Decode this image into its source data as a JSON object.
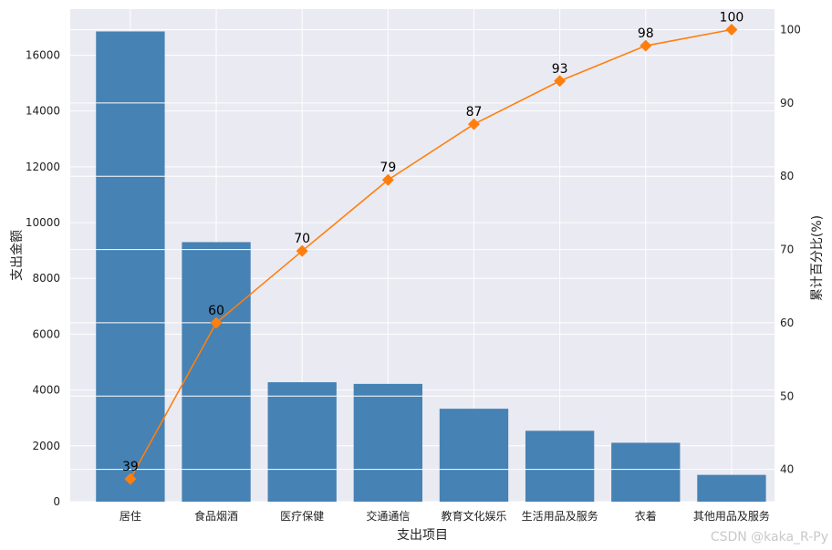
{
  "chart_data": {
    "type": "bar",
    "categories": [
      "居住",
      "食品烟酒",
      "医疗保健",
      "交通通信",
      "教育文化娱乐",
      "生活用品及服务",
      "衣着",
      "其他用品及服务"
    ],
    "series": [
      {
        "type": "bar",
        "axis": "left",
        "color": "#4682b4",
        "values": [
          16850,
          9300,
          4280,
          4220,
          3330,
          2540,
          2110,
          960
        ]
      },
      {
        "type": "line",
        "axis": "right",
        "color": "#ff7f0e",
        "marker": "diamond",
        "values": [
          38.7,
          60.0,
          69.8,
          79.5,
          87.1,
          93.0,
          97.8,
          100.0
        ],
        "data_labels": [
          "39",
          "60",
          "70",
          "79",
          "87",
          "93",
          "98",
          "100"
        ]
      }
    ],
    "xlabel": "支出项目",
    "ylabel": "支出金额",
    "y2label": "累计百分比(%)",
    "ylim": [
      0,
      17650
    ],
    "y2lim": [
      35.6,
      102.8
    ],
    "yticks": [
      0,
      2000,
      4000,
      6000,
      8000,
      10000,
      12000,
      14000,
      16000
    ],
    "y2ticks": [
      40,
      50,
      60,
      70,
      80,
      90,
      100
    ],
    "grid": true,
    "background": "#eaeaf2"
  },
  "watermark": "CSDN @kaka_R-Py"
}
